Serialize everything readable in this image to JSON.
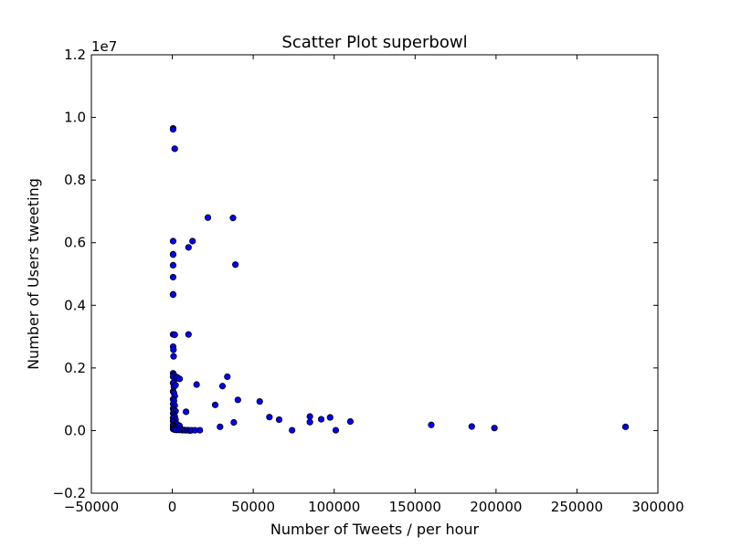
{
  "chart_data": {
    "type": "scatter",
    "title": "Scatter Plot superbowl",
    "xlabel": "Number of Tweets / per hour",
    "ylabel": "Number of Users tweeting",
    "offset_text": "1e7",
    "xlim": [
      -50000,
      300000
    ],
    "ylim": [
      -0.2,
      1.2
    ],
    "y_multiplier": 10000000,
    "x_ticks": [
      -50000,
      0,
      50000,
      100000,
      150000,
      200000,
      250000,
      300000
    ],
    "x_tick_labels": [
      "−50000",
      "0",
      "50000",
      "100000",
      "150000",
      "200000",
      "250000",
      "300000"
    ],
    "y_ticks": [
      -0.2,
      0.0,
      0.2,
      0.4,
      0.6,
      0.8,
      1.0,
      1.2
    ],
    "y_tick_labels": [
      "−0.2",
      "0.0",
      "0.2",
      "0.4",
      "0.6",
      "0.8",
      "1.0",
      "1.2"
    ],
    "grid": false,
    "marker_color": "#0000ff",
    "points": [
      [
        500,
        0.965
      ],
      [
        500,
        0.962
      ],
      [
        1500,
        0.9
      ],
      [
        500,
        0.605
      ],
      [
        500,
        0.563
      ],
      [
        500,
        0.562
      ],
      [
        500,
        0.528
      ],
      [
        500,
        0.49
      ],
      [
        500,
        0.435
      ],
      [
        500,
        0.434
      ],
      [
        500,
        0.307
      ],
      [
        1500,
        0.306
      ],
      [
        500,
        0.268
      ],
      [
        700,
        0.258
      ],
      [
        800,
        0.237
      ],
      [
        500,
        0.183
      ],
      [
        1000,
        0.178
      ],
      [
        500,
        0.172
      ],
      [
        2000,
        0.165
      ],
      [
        3000,
        0.17
      ],
      [
        4500,
        0.165
      ],
      [
        500,
        0.152
      ],
      [
        1000,
        0.14
      ],
      [
        2000,
        0.145
      ],
      [
        500,
        0.125
      ],
      [
        1000,
        0.12
      ],
      [
        1500,
        0.11
      ],
      [
        500,
        0.1
      ],
      [
        1000,
        0.095
      ],
      [
        500,
        0.085
      ],
      [
        1500,
        0.08
      ],
      [
        500,
        0.07
      ],
      [
        1000,
        0.065
      ],
      [
        2000,
        0.062
      ],
      [
        500,
        0.055
      ],
      [
        1000,
        0.05
      ],
      [
        1500,
        0.045
      ],
      [
        500,
        0.04
      ],
      [
        2000,
        0.035
      ],
      [
        500,
        0.03
      ],
      [
        1000,
        0.028
      ],
      [
        1500,
        0.022
      ],
      [
        3000,
        0.02
      ],
      [
        500,
        0.018
      ],
      [
        1000,
        0.015
      ],
      [
        4500,
        0.015
      ],
      [
        500,
        0.012
      ],
      [
        2000,
        0.01
      ],
      [
        3000,
        0.008
      ],
      [
        500,
        0.005
      ],
      [
        1000,
        0.004
      ],
      [
        1500,
        0.003
      ],
      [
        2500,
        0.002
      ],
      [
        4000,
        0.002
      ],
      [
        5000,
        0.004
      ],
      [
        6000,
        0.001
      ],
      [
        7000,
        0.002
      ],
      [
        8000,
        0.001
      ],
      [
        9000,
        0.001
      ],
      [
        10000,
        0.001
      ],
      [
        11000,
        0.0
      ],
      [
        12000,
        0.001
      ],
      [
        14000,
        0.001
      ],
      [
        17000,
        0.001
      ],
      [
        8500,
        0.06
      ],
      [
        10000,
        0.585
      ],
      [
        12500,
        0.605
      ],
      [
        10000,
        0.307
      ],
      [
        15000,
        0.147
      ],
      [
        22000,
        0.68
      ],
      [
        26500,
        0.082
      ],
      [
        29500,
        0.012
      ],
      [
        31000,
        0.142
      ],
      [
        34000,
        0.172
      ],
      [
        37500,
        0.679
      ],
      [
        38000,
        0.026
      ],
      [
        39000,
        0.53
      ],
      [
        40500,
        0.098
      ],
      [
        54000,
        0.093
      ],
      [
        60000,
        0.043
      ],
      [
        66000,
        0.035
      ],
      [
        74000,
        0.001
      ],
      [
        85000,
        0.045
      ],
      [
        85000,
        0.027
      ],
      [
        92000,
        0.036
      ],
      [
        97500,
        0.042
      ],
      [
        101000,
        0.001
      ],
      [
        110000,
        0.029
      ],
      [
        160000,
        0.018
      ],
      [
        185000,
        0.013
      ],
      [
        199000,
        0.008
      ],
      [
        280000,
        0.012
      ]
    ]
  }
}
